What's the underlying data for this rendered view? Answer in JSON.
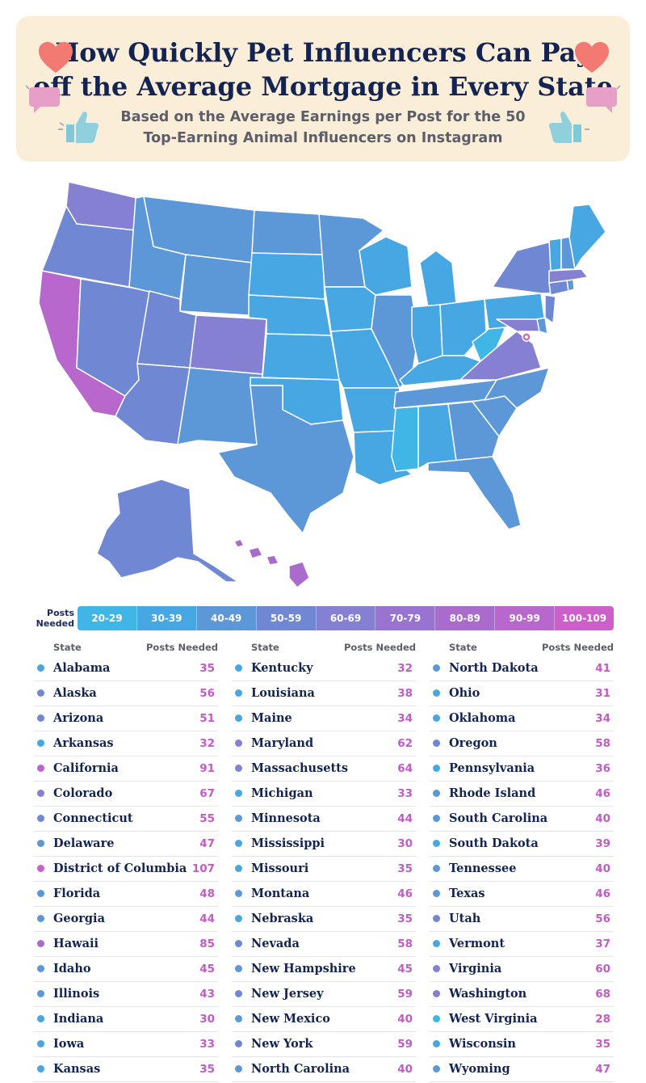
{
  "header": {
    "title_line1": "How Quickly Pet Influencers Can Pay",
    "title_line2": "off the Average Mortgage in Every State",
    "subtitle_line1": "Based on the Average Earnings per Post for the 50",
    "subtitle_line2": "Top-Earning Animal Influencers on Instagram",
    "decor_icons": [
      "heart-icon",
      "speech-bubble-icon",
      "thumbs-up-icon"
    ]
  },
  "legend": {
    "title_line1": "Posts",
    "title_line2": "Needed",
    "bins": [
      {
        "label": "20-29",
        "color": "#3fb6e6"
      },
      {
        "label": "30-39",
        "color": "#46a7e2"
      },
      {
        "label": "40-49",
        "color": "#5c97d8"
      },
      {
        "label": "50-59",
        "color": "#7088d4"
      },
      {
        "label": "60-69",
        "color": "#8580d2"
      },
      {
        "label": "70-79",
        "color": "#9874d0"
      },
      {
        "label": "80-89",
        "color": "#a96ccd"
      },
      {
        "label": "90-99",
        "color": "#b867cc"
      },
      {
        "label": "100-109",
        "color": "#cc5fca"
      }
    ]
  },
  "table": {
    "state_header": "State",
    "posts_header": "Posts Needed",
    "states": [
      {
        "name": "Alabama",
        "posts": 35
      },
      {
        "name": "Alaska",
        "posts": 56
      },
      {
        "name": "Arizona",
        "posts": 51
      },
      {
        "name": "Arkansas",
        "posts": 32
      },
      {
        "name": "California",
        "posts": 91
      },
      {
        "name": "Colorado",
        "posts": 67
      },
      {
        "name": "Connecticut",
        "posts": 55
      },
      {
        "name": "Delaware",
        "posts": 47
      },
      {
        "name": "District of Columbia",
        "posts": 107
      },
      {
        "name": "Florida",
        "posts": 48
      },
      {
        "name": "Georgia",
        "posts": 44
      },
      {
        "name": "Hawaii",
        "posts": 85
      },
      {
        "name": "Idaho",
        "posts": 45
      },
      {
        "name": "Illinois",
        "posts": 43
      },
      {
        "name": "Indiana",
        "posts": 30
      },
      {
        "name": "Iowa",
        "posts": 33
      },
      {
        "name": "Kansas",
        "posts": 35
      },
      {
        "name": "Kentucky",
        "posts": 32
      },
      {
        "name": "Louisiana",
        "posts": 38
      },
      {
        "name": "Maine",
        "posts": 34
      },
      {
        "name": "Maryland",
        "posts": 62
      },
      {
        "name": "Massachusetts",
        "posts": 64
      },
      {
        "name": "Michigan",
        "posts": 33
      },
      {
        "name": "Minnesota",
        "posts": 44
      },
      {
        "name": "Mississippi",
        "posts": 30
      },
      {
        "name": "Missouri",
        "posts": 35
      },
      {
        "name": "Montana",
        "posts": 46
      },
      {
        "name": "Nebraska",
        "posts": 35
      },
      {
        "name": "Nevada",
        "posts": 58
      },
      {
        "name": "New Hampshire",
        "posts": 45
      },
      {
        "name": "New Jersey",
        "posts": 59
      },
      {
        "name": "New Mexico",
        "posts": 40
      },
      {
        "name": "New York",
        "posts": 59
      },
      {
        "name": "North Carolina",
        "posts": 40
      },
      {
        "name": "North Dakota",
        "posts": 41
      },
      {
        "name": "Ohio",
        "posts": 31
      },
      {
        "name": "Oklahoma",
        "posts": 34
      },
      {
        "name": "Oregon",
        "posts": 58
      },
      {
        "name": "Pennsylvania",
        "posts": 36
      },
      {
        "name": "Rhode Island",
        "posts": 46
      },
      {
        "name": "South Carolina",
        "posts": 40
      },
      {
        "name": "South Dakota",
        "posts": 39
      },
      {
        "name": "Tennessee",
        "posts": 40
      },
      {
        "name": "Texas",
        "posts": 46
      },
      {
        "name": "Utah",
        "posts": 56
      },
      {
        "name": "Vermont",
        "posts": 37
      },
      {
        "name": "Virginia",
        "posts": 60
      },
      {
        "name": "Washington",
        "posts": 68
      },
      {
        "name": "West Virginia",
        "posts": 28
      },
      {
        "name": "Wisconsin",
        "posts": 35
      },
      {
        "name": "Wyoming",
        "posts": 47
      }
    ]
  }
}
